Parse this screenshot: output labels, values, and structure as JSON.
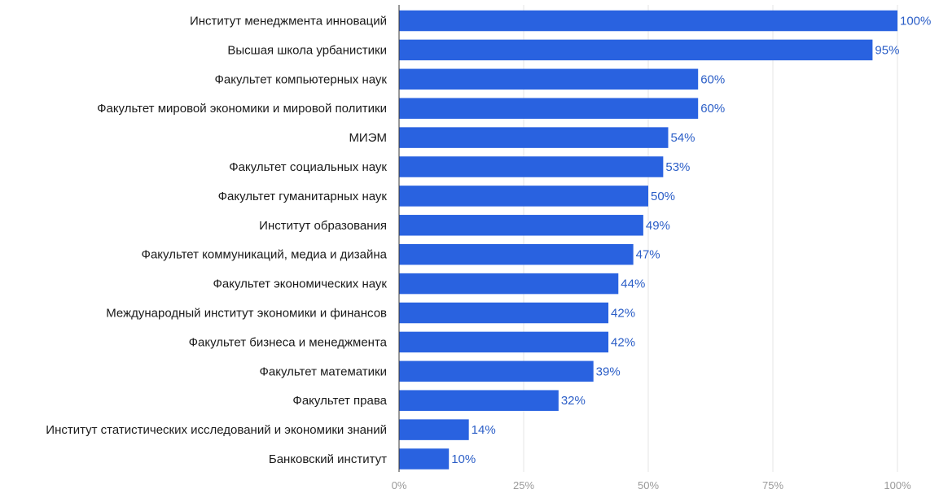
{
  "colors": {
    "bar": "#2962e0",
    "value_label": "#2b5ec7",
    "tick_label": "#9a9a9a",
    "grid": "#e6e6e6"
  },
  "chart_data": {
    "type": "bar",
    "orientation": "horizontal",
    "categories": [
      "Институт менеджмента инноваций",
      "Высшая школа урбанистики",
      "Факультет компьютерных наук",
      "Факультет мировой экономики и мировой политики",
      "МИЭМ",
      "Факультет социальных наук",
      "Факультет гуманитарных наук",
      "Институт образования",
      "Факультет коммуникаций, медиа и дизайна",
      "Факультет экономических наук",
      "Международный институт экономики и финансов",
      "Факультет бизнеса и менеджмента",
      "Факультет математики",
      "Факультет права",
      "Институт статистических исследований и экономики знаний",
      "Банковский институт"
    ],
    "values": [
      100,
      95,
      60,
      60,
      54,
      53,
      50,
      49,
      47,
      44,
      42,
      42,
      39,
      32,
      14,
      10
    ],
    "value_labels": [
      "100%",
      "95%",
      "60%",
      "60%",
      "54%",
      "53%",
      "50%",
      "49%",
      "47%",
      "44%",
      "42%",
      "42%",
      "39%",
      "32%",
      "14%",
      "10%"
    ],
    "xlim": [
      0,
      100
    ],
    "x_ticks": [
      0,
      25,
      50,
      75,
      100
    ],
    "x_tick_labels": [
      "0%",
      "25%",
      "50%",
      "75%",
      "100%"
    ],
    "grid": true
  }
}
